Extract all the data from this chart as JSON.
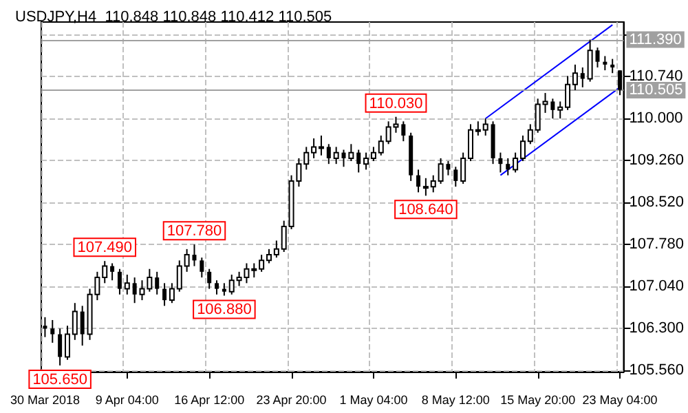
{
  "chart_data": {
    "type": "candlestick",
    "title": "USDJPY,H4  110.848 110.848 110.412 110.505",
    "color": "#000000",
    "grid": true,
    "categories": [
      "30 Mar 2018",
      null,
      null,
      null,
      null,
      null,
      null,
      null,
      null,
      null,
      null,
      "9 Apr 04:00",
      null,
      null,
      null,
      null,
      null,
      null,
      null,
      null,
      null,
      null,
      "16 Apr 12:00",
      null,
      null,
      null,
      null,
      null,
      null,
      null,
      null,
      null,
      null,
      "23 Apr 20:00",
      null,
      null,
      null,
      null,
      null,
      null,
      null,
      null,
      null,
      null,
      "1 May 04:00",
      null,
      null,
      null,
      null,
      null,
      null,
      null,
      null,
      null,
      null,
      "8 May 12:00",
      null,
      null,
      null,
      null,
      null,
      null,
      null,
      null,
      null,
      null,
      "15 May 20:00",
      null,
      null,
      null,
      null,
      null,
      null,
      null,
      null,
      null,
      null,
      "23 May 04:00"
    ],
    "ohlc": [
      [
        106.35,
        106.5,
        106.15,
        106.3
      ],
      [
        106.3,
        106.45,
        106.05,
        106.2
      ],
      [
        106.2,
        106.3,
        105.65,
        105.8
      ],
      [
        105.8,
        106.35,
        105.75,
        106.2
      ],
      [
        106.2,
        106.75,
        106.1,
        106.6
      ],
      [
        106.6,
        106.7,
        106.0,
        106.2
      ],
      [
        106.2,
        107.0,
        106.1,
        106.9
      ],
      [
        106.9,
        107.3,
        106.8,
        107.2
      ],
      [
        107.2,
        107.49,
        107.1,
        107.4
      ],
      [
        107.4,
        107.45,
        107.15,
        107.3
      ],
      [
        107.3,
        107.35,
        106.9,
        107.0
      ],
      [
        107.0,
        107.25,
        106.9,
        107.1
      ],
      [
        107.1,
        107.2,
        106.75,
        106.9
      ],
      [
        106.9,
        107.15,
        106.8,
        107.0
      ],
      [
        107.0,
        107.35,
        106.95,
        107.2
      ],
      [
        107.2,
        107.3,
        106.9,
        107.0
      ],
      [
        107.0,
        107.1,
        106.7,
        106.8
      ],
      [
        106.8,
        107.1,
        106.75,
        107.0
      ],
      [
        107.0,
        107.5,
        106.95,
        107.4
      ],
      [
        107.4,
        107.7,
        107.3,
        107.6
      ],
      [
        107.6,
        107.78,
        107.4,
        107.5
      ],
      [
        107.5,
        107.55,
        107.2,
        107.3
      ],
      [
        107.3,
        107.35,
        107.0,
        107.1
      ],
      [
        107.1,
        107.15,
        106.9,
        107.0
      ],
      [
        107.0,
        107.1,
        106.88,
        106.95
      ],
      [
        106.95,
        107.25,
        106.9,
        107.15
      ],
      [
        107.15,
        107.3,
        107.05,
        107.2
      ],
      [
        107.2,
        107.45,
        107.1,
        107.35
      ],
      [
        107.35,
        107.45,
        107.2,
        107.35
      ],
      [
        107.35,
        107.6,
        107.3,
        107.5
      ],
      [
        107.5,
        107.7,
        107.45,
        107.6
      ],
      [
        107.6,
        107.85,
        107.55,
        107.7
      ],
      [
        107.7,
        108.2,
        107.65,
        108.1
      ],
      [
        108.1,
        109.0,
        108.05,
        108.9
      ],
      [
        108.9,
        109.3,
        108.8,
        109.2
      ],
      [
        109.2,
        109.5,
        109.1,
        109.4
      ],
      [
        109.4,
        109.65,
        109.3,
        109.5
      ],
      [
        109.5,
        109.7,
        109.35,
        109.5
      ],
      [
        109.5,
        109.55,
        109.2,
        109.3
      ],
      [
        109.3,
        109.5,
        109.2,
        109.4
      ],
      [
        109.4,
        109.45,
        109.15,
        109.3
      ],
      [
        109.3,
        109.55,
        109.25,
        109.4
      ],
      [
        109.4,
        109.45,
        109.05,
        109.2
      ],
      [
        109.2,
        109.4,
        109.1,
        109.3
      ],
      [
        109.3,
        109.5,
        109.25,
        109.4
      ],
      [
        109.4,
        109.7,
        109.35,
        109.6
      ],
      [
        109.6,
        109.95,
        109.55,
        109.85
      ],
      [
        109.85,
        110.03,
        109.75,
        109.9
      ],
      [
        109.9,
        109.95,
        109.6,
        109.7
      ],
      [
        109.7,
        109.75,
        108.9,
        109.0
      ],
      [
        109.0,
        109.1,
        108.7,
        108.8
      ],
      [
        108.8,
        108.95,
        108.64,
        108.8
      ],
      [
        108.8,
        109.0,
        108.7,
        108.9
      ],
      [
        108.9,
        109.3,
        108.85,
        109.2
      ],
      [
        109.2,
        109.25,
        109.0,
        109.1
      ],
      [
        109.1,
        109.15,
        108.8,
        108.9
      ],
      [
        108.9,
        109.4,
        108.85,
        109.3
      ],
      [
        109.3,
        109.9,
        109.25,
        109.8
      ],
      [
        109.8,
        109.95,
        109.7,
        109.8
      ],
      [
        109.8,
        110.0,
        109.7,
        109.9
      ],
      [
        109.9,
        109.95,
        109.2,
        109.3
      ],
      [
        109.3,
        109.4,
        109.05,
        109.2
      ],
      [
        109.2,
        109.3,
        109.0,
        109.1
      ],
      [
        109.1,
        109.4,
        109.05,
        109.3
      ],
      [
        109.3,
        109.7,
        109.25,
        109.6
      ],
      [
        109.6,
        109.9,
        109.55,
        109.8
      ],
      [
        109.8,
        110.35,
        109.75,
        110.25
      ],
      [
        110.25,
        110.45,
        110.1,
        110.3
      ],
      [
        110.3,
        110.35,
        110.0,
        110.15
      ],
      [
        110.15,
        110.3,
        110.0,
        110.2
      ],
      [
        110.2,
        110.75,
        110.15,
        110.6
      ],
      [
        110.6,
        110.95,
        110.5,
        110.8
      ],
      [
        110.8,
        110.9,
        110.55,
        110.7
      ],
      [
        110.7,
        111.39,
        110.65,
        111.2
      ],
      [
        111.2,
        111.25,
        110.9,
        111.0
      ],
      [
        111.0,
        111.1,
        110.85,
        110.95
      ],
      [
        110.95,
        111.05,
        110.8,
        110.9
      ],
      [
        110.848,
        110.848,
        110.412,
        110.505
      ]
    ],
    "series": [
      {
        "type": "line",
        "color": "#0000ff",
        "values": [
          null,
          null,
          null,
          null,
          null,
          null,
          null,
          null,
          null,
          null,
          null,
          null,
          null,
          null,
          null,
          null,
          null,
          null,
          null,
          null,
          null,
          null,
          null,
          null,
          null,
          null,
          null,
          null,
          null,
          null,
          null,
          null,
          null,
          null,
          null,
          null,
          null,
          null,
          null,
          null,
          null,
          null,
          null,
          null,
          null,
          null,
          null,
          null,
          null,
          null,
          null,
          null,
          null,
          null,
          null,
          null,
          null,
          null,
          null,
          110.0,
          null,
          null,
          null,
          null,
          null,
          null,
          null,
          null,
          null,
          null,
          null,
          null,
          null,
          null,
          null,
          null,
          111.65,
          null
        ]
      },
      {
        "type": "line",
        "color": "#0000ff",
        "values": [
          null,
          null,
          null,
          null,
          null,
          null,
          null,
          null,
          null,
          null,
          null,
          null,
          null,
          null,
          null,
          null,
          null,
          null,
          null,
          null,
          null,
          null,
          null,
          null,
          null,
          null,
          null,
          null,
          null,
          null,
          null,
          null,
          null,
          null,
          null,
          null,
          null,
          null,
          null,
          null,
          null,
          null,
          null,
          null,
          null,
          null,
          null,
          null,
          null,
          null,
          null,
          null,
          null,
          null,
          null,
          null,
          null,
          null,
          null,
          null,
          null,
          109.0,
          null,
          null,
          null,
          null,
          null,
          null,
          null,
          null,
          null,
          null,
          null,
          null,
          null,
          null,
          null,
          110.55
        ]
      }
    ],
    "ylim": [
      105.54,
      111.7
    ],
    "yticks": [
      {
        "value": 105.56,
        "label": "105.560"
      },
      {
        "value": 106.3,
        "label": "106.300"
      },
      {
        "value": 107.04,
        "label": "107.040"
      },
      {
        "value": 107.78,
        "label": "107.780"
      },
      {
        "value": 108.52,
        "label": "108.520"
      },
      {
        "value": 109.26,
        "label": "109.260"
      },
      {
        "value": 110.0,
        "label": "110.000"
      },
      {
        "value": 110.74,
        "label": "110.740"
      },
      {
        "value": 111.48,
        "label": null
      }
    ],
    "ref_lines": [
      {
        "axis": "y",
        "value": 111.39,
        "label": "111.390",
        "color": "#a0a0a0"
      },
      {
        "axis": "y",
        "value": 110.505,
        "label": "110.505",
        "color": "#a0a0a0"
      }
    ],
    "annotations": [
      {
        "text": "107.490",
        "y": 107.49
      },
      {
        "text": "107.780",
        "y": 107.78
      },
      {
        "text": "106.880",
        "y": 106.88
      },
      {
        "text": "105.650",
        "y": 105.65
      },
      {
        "text": "110.030",
        "y": 110.03
      },
      {
        "text": "108.640",
        "y": 108.64
      }
    ]
  }
}
